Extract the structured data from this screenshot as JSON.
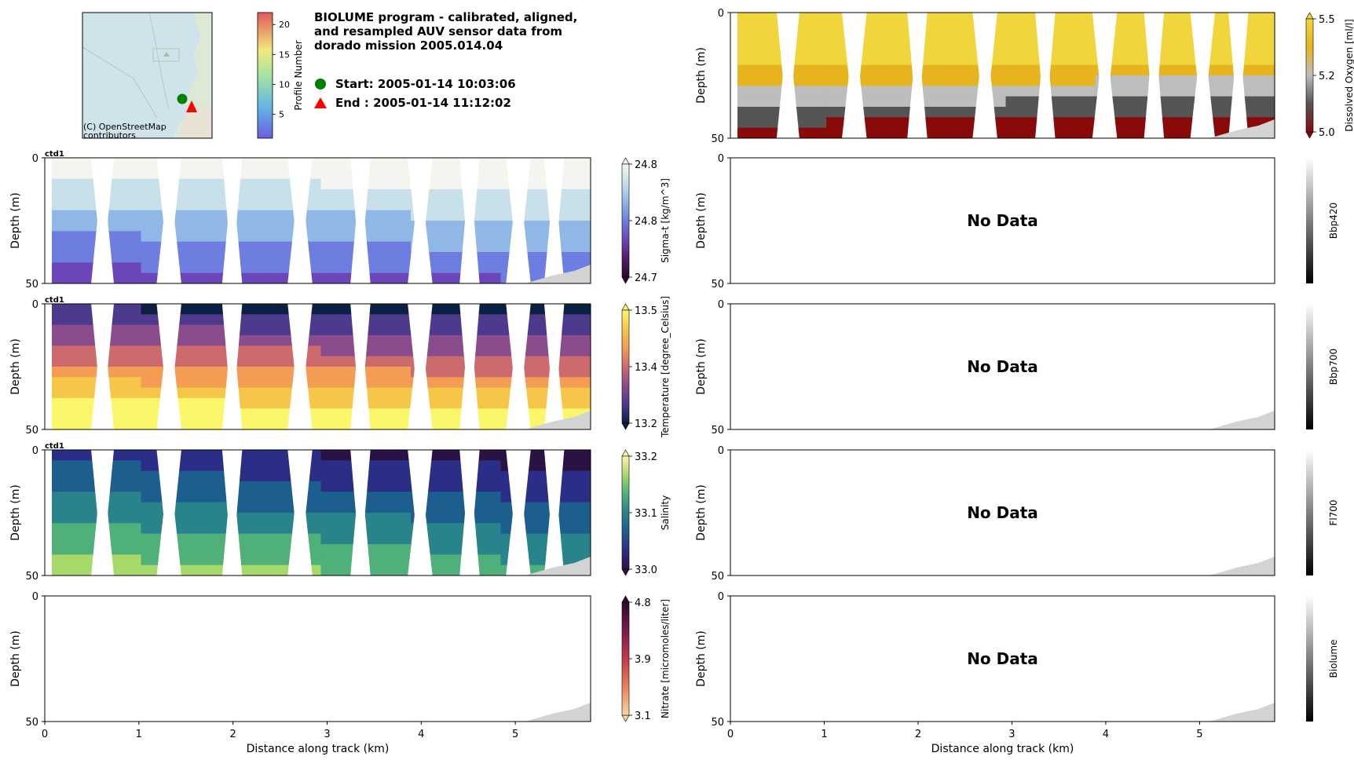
{
  "header": {
    "title_lines": [
      "BIOLUME program - calibrated, aligned,",
      "and resampled AUV sensor data from",
      "dorado mission 2005.014.04"
    ],
    "start_text": "Start: 2005-01-14 10:03:06",
    "end_text": "End  : 2005-01-14 11:12:02",
    "map_attribution": [
      "(C) OpenStreetMap",
      "contributors"
    ],
    "colors": {
      "start_marker": "#008000",
      "end_marker": "#ff0000"
    }
  },
  "profile_colorbar": {
    "label": "Profile Number",
    "ticks": [
      5,
      10,
      15,
      20
    ],
    "range": [
      1,
      22
    ]
  },
  "common": {
    "depth_label": "Depth (m)",
    "distance_label": "Distance along track (km)",
    "depth_ticks": [
      0,
      50
    ],
    "distance_ticks": [
      0,
      1,
      2,
      3,
      4,
      5
    ],
    "distance_range": [
      0,
      5.8
    ],
    "depth_range": [
      0,
      50
    ],
    "no_data_text": "No Data",
    "sensor_tag": "ctd1"
  },
  "chart_data": [
    {
      "type": "heatmap",
      "id": "sigma_t",
      "cbar_label": "Sigma-t [kg/m^3]",
      "cbar_ticks": [
        "24.8",
        "24.8",
        "24.7"
      ],
      "cbar_range": [
        24.7,
        24.8
      ],
      "tag": "ctd1",
      "colormap": [
        "#f5f5f0",
        "#c8e0ea",
        "#8fb8e6",
        "#6d7ee0",
        "#6a46b8",
        "#561c6e",
        "#2a0a28"
      ],
      "has_data": true
    },
    {
      "type": "heatmap",
      "id": "temperature",
      "cbar_label": "Temperature [degree_Celsius]",
      "cbar_ticks": [
        "13.5",
        "13.4",
        "13.2"
      ],
      "cbar_range": [
        13.2,
        13.5
      ],
      "tag": "ctd1",
      "colormap": [
        "#fbf76a",
        "#f6c648",
        "#f39c52",
        "#cc6a6e",
        "#8a4c8c",
        "#4e3a8c",
        "#0b2042"
      ],
      "has_data": true
    },
    {
      "type": "heatmap",
      "id": "salinity",
      "cbar_label": "Salinity",
      "cbar_ticks": [
        "33.2",
        "33.1",
        "33.0"
      ],
      "cbar_range": [
        33.0,
        33.2
      ],
      "tag": "ctd1",
      "colormap": [
        "#fdf3ab",
        "#a6d86a",
        "#4fb07a",
        "#28838a",
        "#1c5e8e",
        "#2b2e86",
        "#2a1244"
      ],
      "has_data": true
    },
    {
      "type": "heatmap",
      "id": "nitrate",
      "cbar_label": "Nitrate [micromoles/liter]",
      "cbar_ticks": [
        "4.8",
        "3.9",
        "3.1"
      ],
      "cbar_range": [
        3.1,
        4.8
      ],
      "colormap": [
        "#2a0d2a",
        "#7a1a4a",
        "#c43a4a",
        "#e9825a",
        "#f8d8a0"
      ],
      "has_data": false
    },
    {
      "type": "heatmap",
      "id": "oxygen",
      "cbar_label": "Dissolved Oxygen [ml/l]",
      "cbar_ticks": [
        "5.5",
        "5.2",
        "5.0"
      ],
      "cbar_range": [
        5.0,
        5.5
      ],
      "colormap": [
        "#f0d63c",
        "#e6b41c",
        "#bdbdbd",
        "#555555",
        "#8a0a0a"
      ],
      "has_data": true
    },
    {
      "type": "heatmap",
      "id": "bbp420",
      "cbar_label": "Bbp420",
      "cbar_ticks": [],
      "has_data": false
    },
    {
      "type": "heatmap",
      "id": "bbp700",
      "cbar_label": "Bbp700",
      "cbar_ticks": [],
      "has_data": false
    },
    {
      "type": "heatmap",
      "id": "fl700",
      "cbar_label": "Fl700",
      "cbar_ticks": [],
      "has_data": false
    },
    {
      "type": "heatmap",
      "id": "biolume",
      "cbar_label": "Biolume",
      "cbar_ticks": [],
      "has_data": false
    }
  ]
}
